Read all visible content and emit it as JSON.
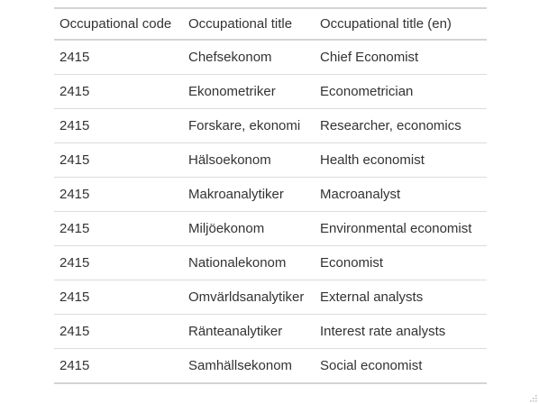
{
  "table": {
    "headers": [
      "Occupational code",
      "Occupational title",
      "Occupational title (en)"
    ],
    "rows": [
      [
        "2415",
        "Chefsekonom",
        "Chief Economist"
      ],
      [
        "2415",
        "Ekonometriker",
        "Econometrician"
      ],
      [
        "2415",
        "Forskare, ekonomi",
        "Researcher, economics"
      ],
      [
        "2415",
        "Hälsoekonom",
        "Health economist"
      ],
      [
        "2415",
        "Makroanalytiker",
        "Macroanalyst"
      ],
      [
        "2415",
        "Miljöekonom",
        "Environmental economist"
      ],
      [
        "2415",
        "Nationalekonom",
        "Economist"
      ],
      [
        "2415",
        "Omvärldsanalytiker",
        "External analysts"
      ],
      [
        "2415",
        "Ränteanalytiker",
        "Interest rate analysts"
      ],
      [
        "2415",
        "Samhällsekonom",
        "Social economist"
      ]
    ]
  },
  "colors": {
    "text": "#333333",
    "border": "#d4d4d4",
    "row_divider": "#dcdcdc"
  },
  "icons": {
    "corner": "resize-grip-icon"
  }
}
